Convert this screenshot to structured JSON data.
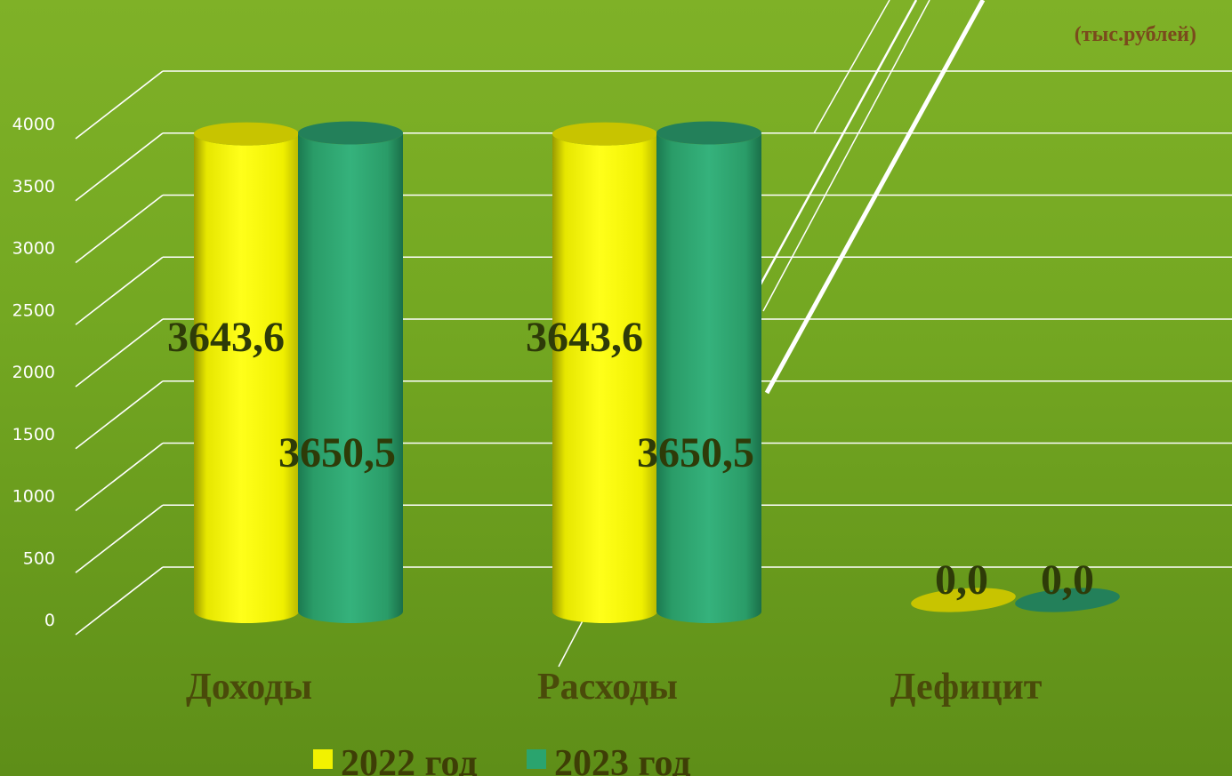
{
  "chart_data": {
    "type": "bar",
    "categories": [
      "Доходы",
      "Расходы",
      "Дефицит"
    ],
    "series": [
      {
        "name": "2022 год",
        "values": [
          3643.6,
          3643.6,
          0.0
        ],
        "labels": [
          "3643,6",
          "3643,6",
          "0,0"
        ],
        "color": "#f2f200"
      },
      {
        "name": "2023 год",
        "values": [
          3650.5,
          3650.5,
          0.0
        ],
        "labels": [
          "3650,5",
          "3650,5",
          "0,0"
        ],
        "color": "#2aa46e"
      }
    ],
    "unit_note": "(тыс.рублей)",
    "ylim": [
      0,
      4000
    ],
    "yticks": [
      "0",
      "500",
      "1000",
      "1500",
      "2000",
      "2500",
      "3000",
      "3500",
      "4000"
    ],
    "grid": true,
    "legend_position": "bottom"
  }
}
